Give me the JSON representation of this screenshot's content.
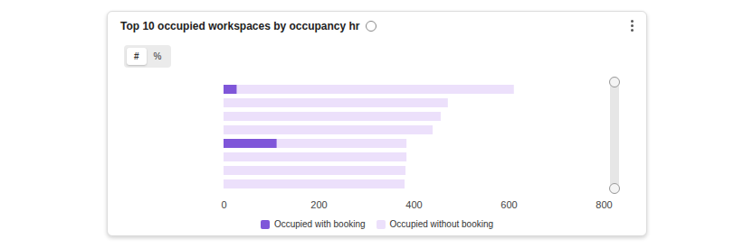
{
  "chart_data": {
    "type": "bar",
    "title": "Top 10 occupied workspaces by occupancy hr",
    "toggle_labels": [
      "#",
      "%"
    ],
    "orientation": "horizontal",
    "stacked": true,
    "categories": [
      null,
      null,
      null,
      null,
      null,
      null,
      null,
      null
    ],
    "series": [
      {
        "name": "Occupied with booking",
        "color": "#7f56d9",
        "values": [
          28,
          0,
          0,
          0,
          112,
          0,
          0,
          0
        ]
      },
      {
        "name": "Occupied without booking",
        "color": "#ece0fb",
        "values": [
          583,
          472,
          457,
          440,
          273,
          385,
          383,
          381
        ]
      }
    ],
    "xlim": [
      0,
      800
    ],
    "xticks": [
      0,
      200,
      400,
      600,
      800
    ],
    "grid": false,
    "legend": "bottom"
  }
}
